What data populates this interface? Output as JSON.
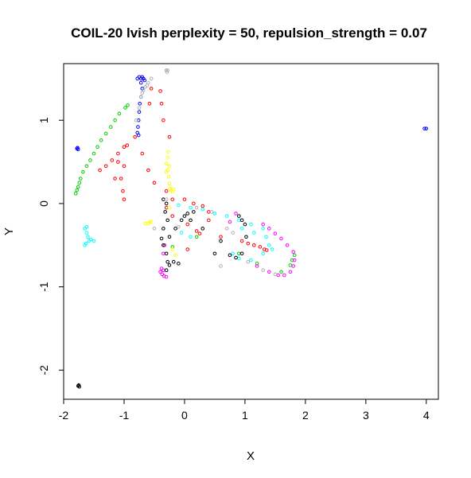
{
  "chart_data": {
    "type": "scatter",
    "title": "COIL-20 lvish perplexity = 50, repulsion_strength = 0.07",
    "xlabel": "X",
    "ylabel": "Y",
    "xlim": [
      -2.0,
      4.2
    ],
    "ylim": [
      -2.35,
      1.68
    ],
    "x_ticks": [
      -2,
      -1,
      0,
      1,
      2,
      3,
      4
    ],
    "y_ticks": [
      -2,
      -1,
      0,
      1
    ],
    "x_tick_labels": [
      "-2",
      "-1",
      "0",
      "1",
      "2",
      "3",
      "4"
    ],
    "y_tick_labels": [
      "-2",
      "-1",
      "0",
      "1"
    ],
    "grid": false,
    "legend": "none",
    "marker": "open-circle",
    "series": [
      {
        "color": "#0000ff",
        "points": [
          [
            -0.75,
            1.52
          ],
          [
            -0.72,
            1.5
          ],
          [
            -0.7,
            1.52
          ],
          [
            -0.68,
            1.5
          ],
          [
            -0.66,
            1.48
          ],
          [
            -0.78,
            1.5
          ],
          [
            -0.72,
            1.45
          ],
          [
            -0.7,
            1.38
          ],
          [
            -0.72,
            1.28
          ],
          [
            -0.74,
            1.2
          ],
          [
            -0.75,
            1.1
          ],
          [
            -0.76,
            1.0
          ],
          [
            -0.77,
            0.92
          ],
          [
            -0.78,
            0.85
          ],
          [
            -0.76,
            0.82
          ],
          [
            -1.78,
            0.66
          ],
          [
            -1.76,
            0.65
          ],
          [
            -1.77,
            0.67
          ],
          [
            3.97,
            0.9
          ],
          [
            4.0,
            0.9
          ]
        ]
      },
      {
        "color": "#00cc00",
        "points": [
          [
            -1.8,
            0.12
          ],
          [
            -1.78,
            0.16
          ],
          [
            -1.76,
            0.2
          ],
          [
            -1.74,
            0.25
          ],
          [
            -1.72,
            0.3
          ],
          [
            -1.68,
            0.38
          ],
          [
            -1.62,
            0.45
          ],
          [
            -1.56,
            0.52
          ],
          [
            -1.5,
            0.6
          ],
          [
            -1.44,
            0.68
          ],
          [
            -1.38,
            0.76
          ],
          [
            -1.3,
            0.84
          ],
          [
            -1.22,
            0.92
          ],
          [
            -1.15,
            1.0
          ],
          [
            -1.08,
            1.08
          ],
          [
            -0.98,
            1.15
          ],
          [
            -0.94,
            1.18
          ],
          [
            -0.2,
            -0.52
          ],
          [
            0.2,
            -0.4
          ],
          [
            0.9,
            -0.6
          ],
          [
            1.2,
            -0.72
          ],
          [
            1.6,
            -0.82
          ],
          [
            1.82,
            -0.62
          ],
          [
            1.78,
            -0.68
          ],
          [
            1.75,
            -0.74
          ]
        ]
      },
      {
        "color": "#ff0000",
        "points": [
          [
            -1.4,
            0.4
          ],
          [
            -1.3,
            0.45
          ],
          [
            -1.2,
            0.52
          ],
          [
            -1.1,
            0.6
          ],
          [
            -1.0,
            0.68
          ],
          [
            -0.95,
            0.7
          ],
          [
            -1.0,
            0.45
          ],
          [
            -1.05,
            0.3
          ],
          [
            -1.02,
            0.15
          ],
          [
            -1.0,
            0.05
          ],
          [
            -1.1,
            0.5
          ],
          [
            -1.15,
            0.3
          ],
          [
            -0.82,
            0.8
          ],
          [
            -0.7,
            0.6
          ],
          [
            -0.6,
            0.4
          ],
          [
            -0.5,
            0.25
          ],
          [
            -0.3,
            0.15
          ],
          [
            -0.2,
            0.05
          ],
          [
            0.0,
            0.05
          ],
          [
            0.15,
            0.0
          ],
          [
            0.3,
            -0.03
          ],
          [
            0.4,
            -0.1
          ],
          [
            -0.3,
            -0.05
          ],
          [
            -0.2,
            -0.15
          ],
          [
            0.05,
            -0.25
          ],
          [
            0.2,
            -0.33
          ],
          [
            0.25,
            -0.36
          ],
          [
            0.05,
            -0.55
          ],
          [
            0.95,
            -0.45
          ],
          [
            1.05,
            -0.48
          ],
          [
            1.15,
            -0.5
          ],
          [
            1.25,
            -0.52
          ],
          [
            1.32,
            -0.55
          ],
          [
            1.36,
            -0.56
          ],
          [
            0.4,
            -0.2
          ],
          [
            0.6,
            -0.4
          ],
          [
            -0.25,
            0.8
          ],
          [
            -0.35,
            1.0
          ],
          [
            -0.38,
            1.2
          ],
          [
            -0.4,
            1.35
          ],
          [
            -0.55,
            1.38
          ],
          [
            -0.58,
            1.2
          ]
        ]
      },
      {
        "color": "#00ffff",
        "points": [
          [
            -1.65,
            -0.3
          ],
          [
            -1.62,
            -0.35
          ],
          [
            -1.6,
            -0.4
          ],
          [
            -1.55,
            -0.43
          ],
          [
            -1.5,
            -0.45
          ],
          [
            -1.58,
            -0.45
          ],
          [
            -1.63,
            -0.48
          ],
          [
            -1.65,
            -0.5
          ],
          [
            -1.62,
            -0.28
          ],
          [
            -0.1,
            -0.02
          ],
          [
            0.1,
            -0.05
          ],
          [
            0.3,
            -0.07
          ],
          [
            0.5,
            -0.12
          ],
          [
            0.7,
            -0.15
          ],
          [
            0.9,
            -0.2
          ],
          [
            1.1,
            -0.25
          ],
          [
            1.3,
            -0.3
          ],
          [
            1.4,
            -0.5
          ],
          [
            1.3,
            -0.6
          ],
          [
            1.1,
            -0.68
          ],
          [
            0.9,
            -0.66
          ],
          [
            0.8,
            -0.6
          ],
          [
            0.95,
            -0.3
          ],
          [
            1.15,
            -0.35
          ],
          [
            1.35,
            -0.4
          ],
          [
            1.45,
            -0.55
          ],
          [
            -0.05,
            -0.35
          ],
          [
            0.1,
            -0.4
          ]
        ]
      },
      {
        "color": "#ff00ff",
        "points": [
          [
            -0.4,
            -0.82
          ],
          [
            -0.37,
            -0.85
          ],
          [
            -0.34,
            -0.87
          ],
          [
            -0.3,
            -0.88
          ],
          [
            -0.35,
            -0.8
          ],
          [
            -0.38,
            -0.78
          ],
          [
            -0.33,
            -0.5
          ],
          [
            -0.35,
            -0.6
          ],
          [
            1.2,
            -0.75
          ],
          [
            1.4,
            -0.82
          ],
          [
            1.55,
            -0.86
          ],
          [
            1.65,
            -0.86
          ],
          [
            1.75,
            -0.82
          ],
          [
            1.8,
            -0.75
          ],
          [
            1.82,
            -0.68
          ],
          [
            1.8,
            -0.58
          ],
          [
            1.7,
            -0.5
          ],
          [
            1.6,
            -0.42
          ],
          [
            1.5,
            -0.36
          ],
          [
            1.4,
            -0.3
          ],
          [
            1.3,
            -0.25
          ],
          [
            0.75,
            -0.22
          ],
          [
            0.85,
            -0.12
          ]
        ]
      },
      {
        "color": "#ffff00",
        "points": [
          [
            -0.27,
            0.62
          ],
          [
            -0.28,
            0.55
          ],
          [
            -0.3,
            0.48
          ],
          [
            -0.28,
            0.4
          ],
          [
            -0.26,
            0.32
          ],
          [
            -0.25,
            0.24
          ],
          [
            -0.24,
            0.18
          ],
          [
            -0.22,
            0.16
          ],
          [
            -0.2,
            0.14
          ],
          [
            -0.18,
            0.17
          ],
          [
            -0.25,
            0.45
          ],
          [
            -0.3,
            0.38
          ],
          [
            -0.65,
            -0.24
          ],
          [
            -0.6,
            -0.24
          ],
          [
            -0.58,
            -0.22
          ],
          [
            -0.55,
            -0.22
          ],
          [
            -0.25,
            -0.05
          ],
          [
            -0.2,
            -0.55
          ],
          [
            -0.15,
            -0.62
          ]
        ]
      },
      {
        "color": "#000000",
        "points": [
          [
            -1.75,
            -2.18
          ],
          [
            -1.74,
            -2.2
          ],
          [
            -1.76,
            -2.19
          ],
          [
            -0.35,
            0.05
          ],
          [
            -0.3,
            0.0
          ],
          [
            -0.32,
            -0.1
          ],
          [
            -0.28,
            -0.2
          ],
          [
            -0.35,
            -0.3
          ],
          [
            -0.38,
            -0.42
          ],
          [
            -0.35,
            -0.5
          ],
          [
            -0.3,
            -0.6
          ],
          [
            -0.28,
            -0.7
          ],
          [
            -0.3,
            -0.8
          ],
          [
            -0.25,
            -0.74
          ],
          [
            -0.18,
            -0.7
          ],
          [
            -0.1,
            -0.72
          ],
          [
            -0.25,
            -0.4
          ],
          [
            -0.15,
            -0.3
          ],
          [
            -0.05,
            -0.2
          ],
          [
            0.0,
            -0.15
          ],
          [
            0.05,
            -0.12
          ],
          [
            0.5,
            -0.6
          ],
          [
            0.75,
            -0.62
          ],
          [
            0.85,
            -0.65
          ],
          [
            0.95,
            -0.6
          ],
          [
            1.02,
            -0.4
          ],
          [
            1.0,
            -0.25
          ],
          [
            0.95,
            -0.2
          ],
          [
            0.9,
            -0.15
          ],
          [
            0.1,
            -0.2
          ],
          [
            0.3,
            -0.3
          ],
          [
            0.6,
            -0.45
          ],
          [
            0.15,
            -0.1
          ]
        ]
      },
      {
        "color": "#b0b0b0",
        "points": [
          [
            -0.3,
            1.6
          ],
          [
            -0.29,
            1.58
          ],
          [
            -0.28,
            1.6
          ],
          [
            -0.55,
            1.5
          ],
          [
            -0.6,
            1.45
          ],
          [
            -0.65,
            1.4
          ],
          [
            -0.7,
            1.33
          ],
          [
            -0.72,
            1.28
          ],
          [
            -0.68,
            1.36
          ],
          [
            -0.62,
            1.42
          ],
          [
            -0.75,
            1.15
          ],
          [
            -0.8,
            1.0
          ],
          [
            -0.5,
            -0.3
          ],
          [
            -0.3,
            0.05
          ],
          [
            -0.1,
            -0.28
          ],
          [
            0.2,
            -0.05
          ],
          [
            0.45,
            -0.1
          ],
          [
            0.7,
            -0.3
          ],
          [
            0.8,
            -0.35
          ],
          [
            1.05,
            -0.7
          ],
          [
            1.3,
            -0.8
          ],
          [
            1.5,
            -0.85
          ],
          [
            0.6,
            -0.75
          ]
        ]
      }
    ]
  }
}
